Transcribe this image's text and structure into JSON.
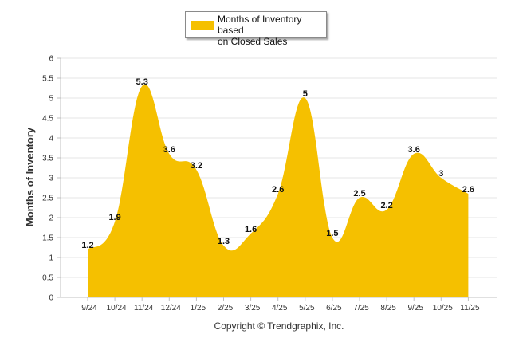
{
  "chart_data": {
    "type": "area",
    "categories": [
      "9/24",
      "10/24",
      "11/24",
      "12/24",
      "1/25",
      "2/25",
      "3/25",
      "4/25",
      "5/25",
      "6/25",
      "7/25",
      "8/25",
      "9/25",
      "10/25",
      "11/25"
    ],
    "series": [
      {
        "name": "Months of Inventory based on Closed Sales",
        "values": [
          1.2,
          1.9,
          5.3,
          3.6,
          3.2,
          1.3,
          1.6,
          2.6,
          5,
          1.5,
          2.5,
          2.2,
          3.6,
          3,
          2.6
        ],
        "color": "#F5C000"
      }
    ],
    "ylabel": "Months of Inventory",
    "xlabel": "",
    "ylim": [
      0,
      6
    ],
    "yticks": [
      "0",
      "0.5",
      "1",
      "1.5",
      "2",
      "2.5",
      "3",
      "3.5",
      "4",
      "4.5",
      "5",
      "5.5",
      "6"
    ],
    "grid": true,
    "legend": "top-center",
    "credit": "Copyright © Trendgraphix, Inc."
  },
  "legend": {
    "line1": "Months of Inventory based",
    "line2": "on Closed Sales"
  }
}
